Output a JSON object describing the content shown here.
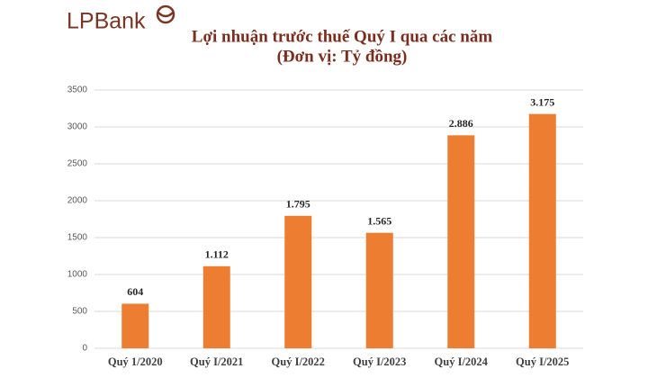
{
  "header": {
    "logo": "LPBank"
  },
  "chart_data": {
    "type": "bar",
    "title": "Lợi nhuận trước thuế Quý I qua các năm",
    "subtitle": "(Đơn vị: Tỷ đồng)",
    "categories": [
      "Quý 1/2020",
      "Quý I/2021",
      "Quý I/2022",
      "Quý I/2023",
      "Quý I/2024",
      "Quý I/2025"
    ],
    "values": [
      604,
      1112,
      1795,
      1565,
      2886,
      3175
    ],
    "value_labels": [
      "604",
      "1.112",
      "1.795",
      "1.565",
      "2.886",
      "3.175"
    ],
    "color": "#ed7d31",
    "ylim": [
      0,
      3500
    ],
    "yticks": [
      0,
      500,
      1000,
      1500,
      2000,
      2500,
      3000,
      3500
    ],
    "grid": true
  }
}
